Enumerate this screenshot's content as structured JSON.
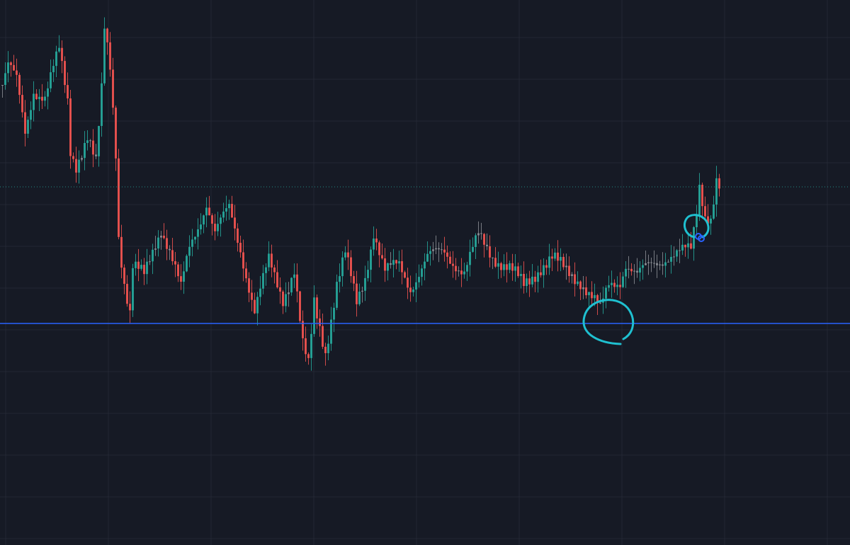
{
  "chart_data": {
    "type": "candlestick",
    "title": "",
    "xlabel": "",
    "ylabel": "",
    "grid": true,
    "ylim": [
      0,
      77
    ],
    "xlim": [
      0,
      300
    ],
    "colors": {
      "background": "#161a25",
      "grid": "#232733",
      "up": "#26a69a",
      "down": "#ef5350",
      "neutral": "#8a8d93",
      "support_line": "#2962ff",
      "price_line": "#26a69a",
      "drawing": "#1fc0d0",
      "marker": "#2962ff"
    },
    "close_path": {
      "bar_index": [
        0,
        2,
        5,
        8,
        11,
        15,
        20,
        23,
        24,
        26,
        30,
        33,
        35,
        36,
        38,
        40,
        41,
        43,
        45,
        46,
        50,
        54,
        56,
        59,
        63,
        66,
        72,
        75,
        80,
        84,
        89,
        94,
        99,
        103,
        106,
        108,
        110,
        114,
        118,
        121,
        125,
        128,
        131,
        135,
        140,
        144,
        150,
        156,
        163,
        168,
        173,
        179,
        184,
        190,
        194,
        199,
        204,
        209,
        211,
        214,
        218,
        220,
        224,
        229,
        235,
        243,
        245,
        246,
        248,
        250,
        252,
        253
      ],
      "price": [
        65,
        67.5,
        65.5,
        58.5,
        64.5,
        63,
        69.8,
        63,
        56,
        54,
        57.5,
        53.5,
        64,
        73,
        68,
        56,
        44,
        37,
        32.5,
        39,
        38,
        43,
        45,
        41.5,
        36,
        42,
        48.5,
        44,
        47.5,
        42,
        33,
        40,
        35,
        39,
        28,
        25,
        34,
        27.5,
        37,
        41,
        34,
        38,
        44.5,
        38.5,
        39.5,
        36.5,
        40.5,
        41.5,
        38.5,
        43.5,
        41,
        39,
        36.5,
        39.5,
        40.5,
        38.5,
        37.5,
        34.5,
        33,
        36.5,
        37.5,
        40,
        38,
        39.5,
        41,
        41.5,
        47,
        51,
        47,
        46.5,
        51.5,
        50.5
      ]
    },
    "horizontal_lines": [
      {
        "kind": "support",
        "price": 31.3,
        "style": "solid"
      },
      {
        "kind": "last-price",
        "price": 50.6,
        "style": "dotted"
      }
    ],
    "annotations": [
      {
        "kind": "hand-drawn-circle",
        "bar_index": 214,
        "price": 31.5
      },
      {
        "kind": "hand-drawn-circle",
        "bar_index": 245,
        "price": 45
      },
      {
        "kind": "marker-dot",
        "bar_index": 246,
        "price": 43.6
      },
      {
        "kind": "marker-dot",
        "bar_index": 247,
        "price": 43.3
      }
    ]
  }
}
